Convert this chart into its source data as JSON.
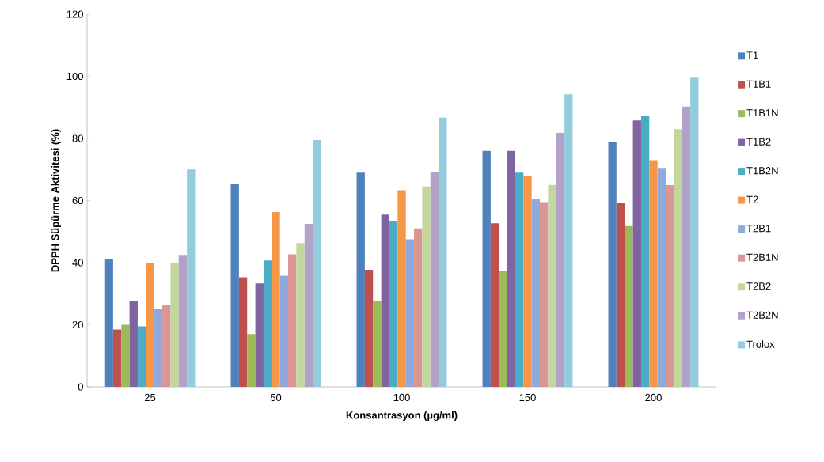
{
  "chart_data": {
    "type": "bar",
    "xlabel": "Konsantrasyon (µg/ml)",
    "ylabel": "DPPH Süpürme Aktivitesi (%)",
    "categories": [
      "25",
      "50",
      "100",
      "150",
      "200"
    ],
    "series": [
      {
        "name": "T1",
        "color": "#4f81bd",
        "values": [
          41,
          65.5,
          69,
          76,
          78.8
        ]
      },
      {
        "name": "T1B1",
        "color": "#c0504d",
        "values": [
          18.5,
          35.3,
          37.7,
          52.7,
          59.2
        ]
      },
      {
        "name": "T1B1N",
        "color": "#9bbb59",
        "values": [
          20,
          17,
          27.5,
          37.2,
          51.8
        ]
      },
      {
        "name": "T1B2",
        "color": "#8064a2",
        "values": [
          27.5,
          33.3,
          55.5,
          76,
          85.8
        ]
      },
      {
        "name": "T1B2N",
        "color": "#4bacc6",
        "values": [
          19.5,
          40.7,
          53.5,
          69,
          87.2
        ]
      },
      {
        "name": "T2",
        "color": "#f79646",
        "values": [
          40,
          56.3,
          63.3,
          68,
          73
        ]
      },
      {
        "name": "T2B1",
        "color": "#8fa9dc",
        "values": [
          25,
          35.8,
          47.5,
          60.5,
          70.5
        ]
      },
      {
        "name": "T2B1N",
        "color": "#d99694",
        "values": [
          26.5,
          42.7,
          51,
          59.5,
          65
        ]
      },
      {
        "name": "T2B2",
        "color": "#c3d69b",
        "values": [
          40,
          46.3,
          64.5,
          65,
          83
        ]
      },
      {
        "name": "T2B2N",
        "color": "#b3a2c7",
        "values": [
          42.5,
          52.5,
          69.2,
          81.8,
          90.3
        ]
      },
      {
        "name": "Trolox",
        "color": "#93cddd",
        "values": [
          70,
          79.5,
          86.7,
          94.2,
          99.8
        ]
      }
    ],
    "ylim": [
      0,
      120
    ],
    "yticks": [
      0,
      20,
      40,
      60,
      80,
      100,
      120
    ],
    "legend": "right"
  }
}
